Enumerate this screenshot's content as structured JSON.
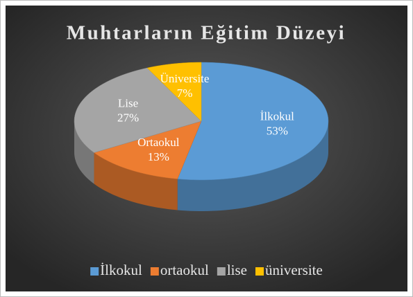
{
  "chart_data": {
    "type": "pie3d",
    "title": "Muhtarların Eğitim Düzeyi",
    "categories": [
      "İlkokul",
      "ortaokul",
      "lise",
      "üniversite"
    ],
    "slice_labels": [
      "İlkokul",
      "Ortaokul",
      "Lise",
      "Üniversite"
    ],
    "values": [
      53,
      13,
      27,
      7
    ],
    "value_labels": [
      "53%",
      "13%",
      "27%",
      "7%"
    ],
    "colors": [
      "#5b9bd5",
      "#ed7d31",
      "#a5a5a5",
      "#ffc000"
    ],
    "legend": "bottom"
  }
}
